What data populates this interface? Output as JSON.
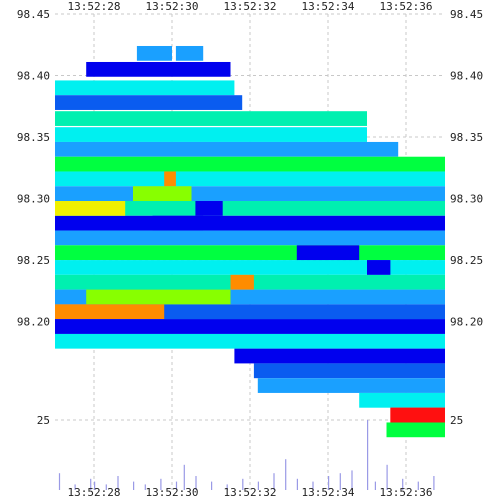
{
  "chart_data": {
    "type": "heatmap",
    "title": "",
    "xlabel": "",
    "ylabel": "",
    "x_ticks": [
      "13:52:28",
      "13:52:30",
      "13:52:32",
      "13:52:34",
      "13:52:36"
    ],
    "x_range_seconds_after_13_52_27": [
      0,
      10
    ],
    "price_ticks": [
      98.45,
      98.4,
      98.35,
      98.3,
      98.25,
      98.2
    ],
    "price_range": [
      98.12,
      98.45
    ],
    "volume_ticks": [
      25
    ],
    "volume_range": [
      0,
      25
    ],
    "grid": true,
    "colors": {
      "dark_blue": "#0000ee",
      "blue": "#0a5cf0",
      "azure": "#1aa0ff",
      "cyan": "#00f0f0",
      "aqua_green": "#00f0b0",
      "green": "#00ff40",
      "lime": "#88ff00",
      "yellow": "#f0f000",
      "orange": "#ff8c00",
      "red": "#ff1010",
      "volume_bar": "#9a9ae6"
    },
    "depth_bands": [
      {
        "price": 98.418,
        "start": 2.1,
        "end": 3.0,
        "color": "azure"
      },
      {
        "price": 98.418,
        "start": 3.1,
        "end": 3.8,
        "color": "azure"
      },
      {
        "price": 98.405,
        "start": 0.8,
        "end": 4.5,
        "color": "dark_blue"
      },
      {
        "price": 98.39,
        "start": 0.0,
        "end": 4.6,
        "color": "cyan"
      },
      {
        "price": 98.378,
        "start": 0.0,
        "end": 4.8,
        "color": "blue"
      },
      {
        "price": 98.365,
        "start": 0.0,
        "end": 8.0,
        "color": "aqua_green"
      },
      {
        "price": 98.352,
        "start": 0.0,
        "end": 8.0,
        "color": "cyan"
      },
      {
        "price": 98.34,
        "start": 0.0,
        "end": 8.8,
        "color": "azure"
      },
      {
        "price": 98.328,
        "start": 0.0,
        "end": 10.0,
        "color": "green"
      },
      {
        "price": 98.316,
        "start": 0.0,
        "end": 10.0,
        "color": "cyan"
      },
      {
        "price": 98.304,
        "start": 0.0,
        "end": 10.0,
        "color": "azure"
      },
      {
        "price": 98.292,
        "start": 0.0,
        "end": 10.0,
        "color": "aqua_green"
      },
      {
        "price": 98.28,
        "start": 0.0,
        "end": 10.0,
        "color": "dark_blue"
      },
      {
        "price": 98.268,
        "start": 0.0,
        "end": 10.0,
        "color": "azure"
      },
      {
        "price": 98.256,
        "start": 0.0,
        "end": 10.0,
        "color": "green"
      },
      {
        "price": 98.244,
        "start": 0.0,
        "end": 10.0,
        "color": "cyan"
      },
      {
        "price": 98.232,
        "start": 0.0,
        "end": 10.0,
        "color": "aqua_green"
      },
      {
        "price": 98.22,
        "start": 0.0,
        "end": 10.0,
        "color": "azure"
      },
      {
        "price": 98.208,
        "start": 0.0,
        "end": 10.0,
        "color": "blue"
      },
      {
        "price": 98.196,
        "start": 0.0,
        "end": 10.0,
        "color": "azure"
      },
      {
        "price": 98.184,
        "start": 0.0,
        "end": 10.0,
        "color": "cyan"
      },
      {
        "price": 98.172,
        "start": 4.6,
        "end": 10.0,
        "color": "dark_blue"
      },
      {
        "price": 98.16,
        "start": 5.1,
        "end": 10.0,
        "color": "blue"
      },
      {
        "price": 98.148,
        "start": 5.2,
        "end": 10.0,
        "color": "azure"
      },
      {
        "price": 98.136,
        "start": 7.8,
        "end": 10.0,
        "color": "cyan"
      },
      {
        "price": 98.124,
        "start": 8.6,
        "end": 10.0,
        "color": "red"
      },
      {
        "price": 98.112,
        "start": 8.5,
        "end": 10.0,
        "color": "green"
      }
    ],
    "highlights": [
      {
        "price": 98.316,
        "start": 2.8,
        "end": 3.1,
        "color": "orange"
      },
      {
        "price": 98.304,
        "start": 2.0,
        "end": 3.5,
        "color": "lime"
      },
      {
        "price": 98.292,
        "start": 0.0,
        "end": 1.8,
        "color": "yellow"
      },
      {
        "price": 98.292,
        "start": 3.6,
        "end": 4.3,
        "color": "dark_blue"
      },
      {
        "price": 98.28,
        "start": 2.5,
        "end": 3.8,
        "color": "dark_blue"
      },
      {
        "price": 98.256,
        "start": 6.2,
        "end": 7.8,
        "color": "dark_blue"
      },
      {
        "price": 98.232,
        "start": 4.5,
        "end": 5.1,
        "color": "orange"
      },
      {
        "price": 98.22,
        "start": 0.8,
        "end": 4.5,
        "color": "lime"
      },
      {
        "price": 98.208,
        "start": 0.0,
        "end": 2.8,
        "color": "orange"
      },
      {
        "price": 98.196,
        "start": 0.0,
        "end": 10.0,
        "color": "dark_blue"
      },
      {
        "price": 98.244,
        "start": 8.0,
        "end": 8.6,
        "color": "dark_blue"
      },
      {
        "price": 98.124,
        "start": 8.6,
        "end": 10.0,
        "color": "red"
      }
    ],
    "volume": [
      {
        "t": 0.1,
        "v": 6
      },
      {
        "t": 0.5,
        "v": 2
      },
      {
        "t": 0.9,
        "v": 4
      },
      {
        "t": 1.0,
        "v": 3
      },
      {
        "t": 1.3,
        "v": 2
      },
      {
        "t": 1.6,
        "v": 5
      },
      {
        "t": 2.0,
        "v": 3
      },
      {
        "t": 2.3,
        "v": 2
      },
      {
        "t": 2.7,
        "v": 4
      },
      {
        "t": 3.1,
        "v": 3
      },
      {
        "t": 3.3,
        "v": 9
      },
      {
        "t": 3.6,
        "v": 5
      },
      {
        "t": 4.0,
        "v": 3
      },
      {
        "t": 4.4,
        "v": 2
      },
      {
        "t": 4.8,
        "v": 4
      },
      {
        "t": 5.2,
        "v": 3
      },
      {
        "t": 5.6,
        "v": 6
      },
      {
        "t": 5.9,
        "v": 11
      },
      {
        "t": 6.2,
        "v": 4
      },
      {
        "t": 6.6,
        "v": 3
      },
      {
        "t": 7.0,
        "v": 5
      },
      {
        "t": 7.3,
        "v": 6
      },
      {
        "t": 7.6,
        "v": 7
      },
      {
        "t": 8.0,
        "v": 25
      },
      {
        "t": 8.2,
        "v": 3
      },
      {
        "t": 8.5,
        "v": 9
      },
      {
        "t": 8.9,
        "v": 4
      },
      {
        "t": 9.3,
        "v": 3
      },
      {
        "t": 9.7,
        "v": 5
      }
    ]
  }
}
